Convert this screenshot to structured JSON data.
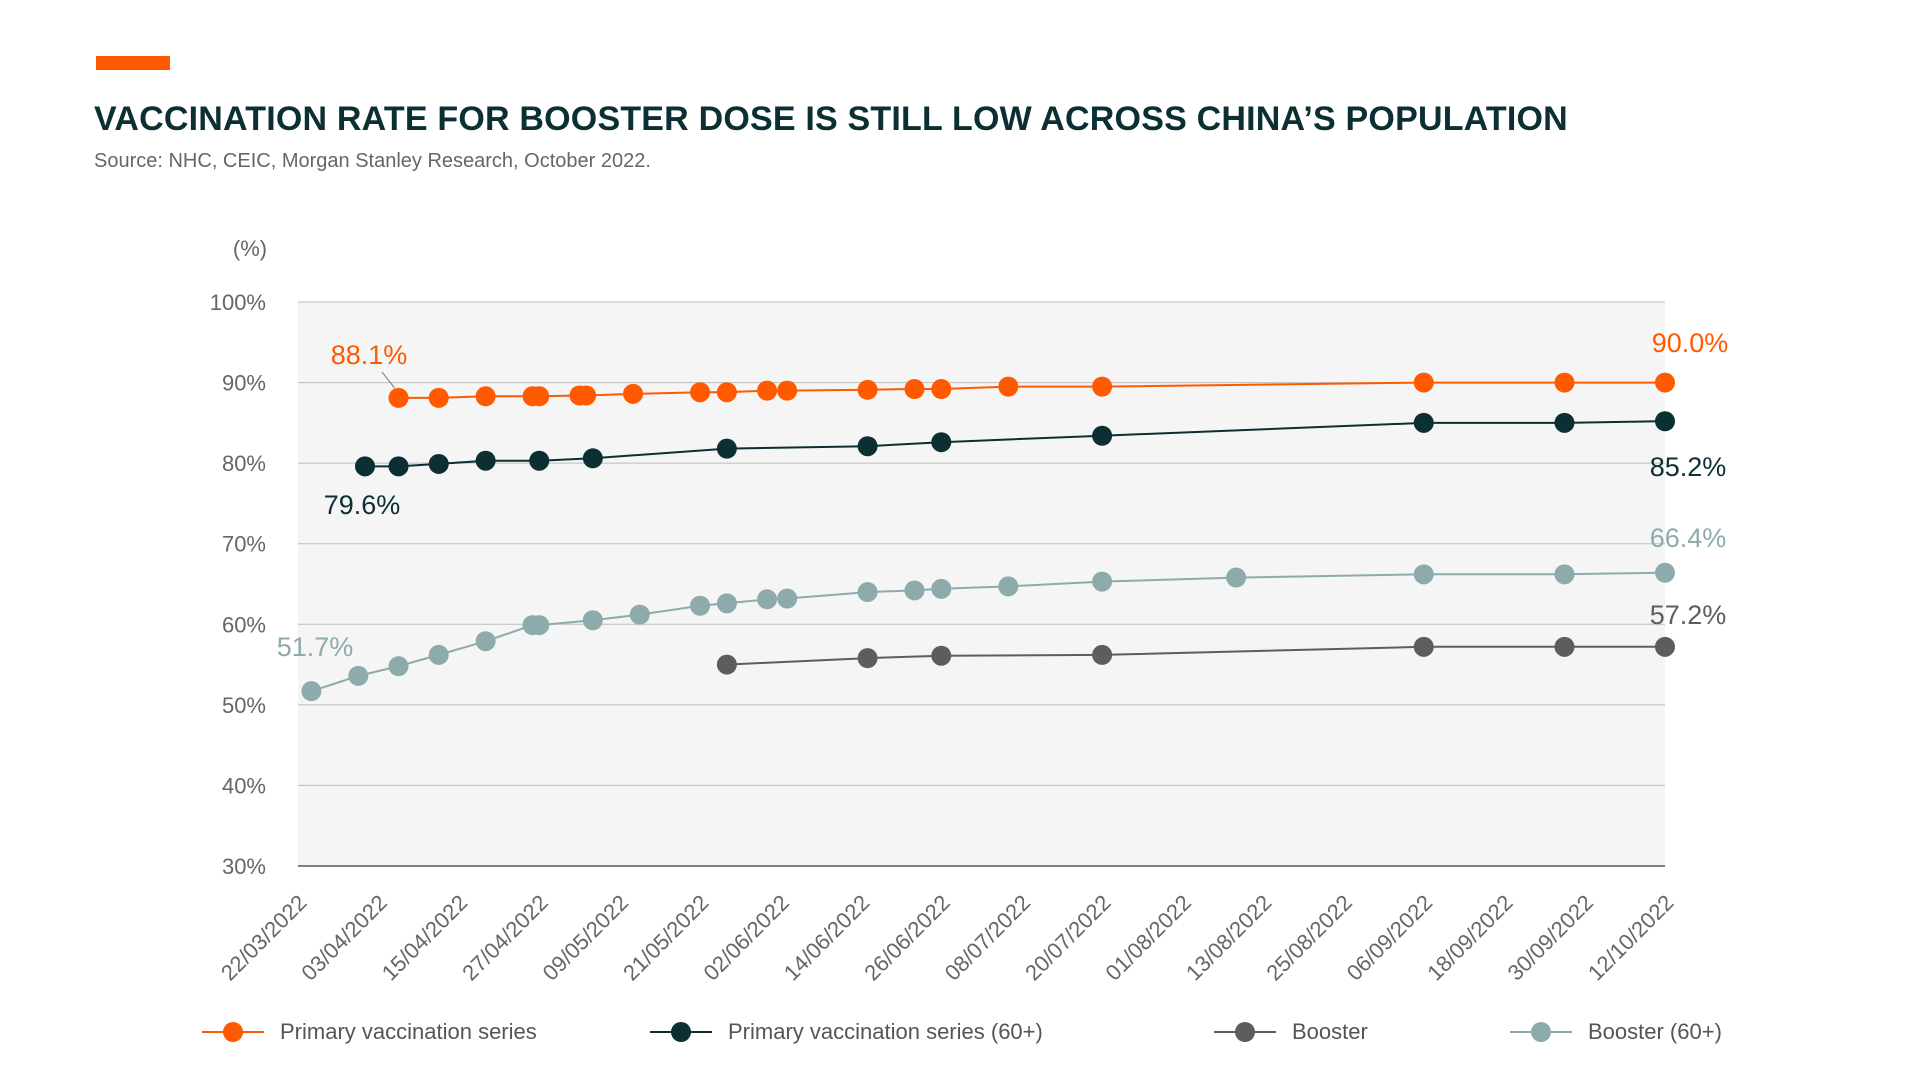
{
  "header": {
    "title": "VACCINATION RATE FOR BOOSTER DOSE IS STILL LOW ACROSS CHINA’S POPULATION",
    "source": "Source: NHC, CEIC, Morgan Stanley Research, October 2022.",
    "accent_color": "#ff5a00"
  },
  "chart_data": {
    "type": "line",
    "ylabel": "(%)",
    "ylim": [
      30,
      100
    ],
    "y_ticks": [
      30,
      40,
      50,
      60,
      70,
      80,
      90,
      100
    ],
    "y_tick_labels": [
      "30%",
      "40%",
      "50%",
      "60%",
      "70%",
      "80%",
      "90%",
      "100%"
    ],
    "x_start": "2022-03-22",
    "x_ticks": [
      "2022-03-22",
      "2022-04-03",
      "2022-04-15",
      "2022-04-27",
      "2022-05-09",
      "2022-05-21",
      "2022-06-02",
      "2022-06-14",
      "2022-06-26",
      "2022-07-08",
      "2022-07-20",
      "2022-08-01",
      "2022-08-13",
      "2022-08-25",
      "2022-09-06",
      "2022-09-18",
      "2022-09-30",
      "2022-10-12"
    ],
    "x_tick_labels": [
      "22/03/2022",
      "03/04/2022",
      "15/04/2022",
      "27/04/2022",
      "09/05/2022",
      "21/05/2022",
      "02/06/2022",
      "14/06/2022",
      "26/06/2022",
      "08/07/2022",
      "20/07/2022",
      "01/08/2022",
      "13/08/2022",
      "25/08/2022",
      "06/09/2022",
      "18/09/2022",
      "30/09/2022",
      "12/10/2022"
    ],
    "grid": true,
    "legend_position": "bottom",
    "series": [
      {
        "name": "Primary vaccination series",
        "color": "#ff5a00",
        "x": [
          "2022-04-06",
          "2022-04-12",
          "2022-04-19",
          "2022-04-26",
          "2022-04-27",
          "2022-05-03",
          "2022-05-04",
          "2022-05-11",
          "2022-05-21",
          "2022-05-25",
          "2022-05-31",
          "2022-06-03",
          "2022-06-15",
          "2022-06-22",
          "2022-06-26",
          "2022-07-06",
          "2022-07-20",
          "2022-09-06",
          "2022-09-27",
          "2022-10-12"
        ],
        "values": [
          88.1,
          88.1,
          88.3,
          88.3,
          88.3,
          88.4,
          88.4,
          88.6,
          88.8,
          88.8,
          89.0,
          89.0,
          89.1,
          89.2,
          89.2,
          89.5,
          89.5,
          90.0,
          90.0,
          90.0
        ],
        "start_label": "88.1%",
        "end_label": "90.0%"
      },
      {
        "name": "Primary vaccination series (60+)",
        "color": "#0b2f33",
        "x": [
          "2022-04-01",
          "2022-04-06",
          "2022-04-12",
          "2022-04-19",
          "2022-04-27",
          "2022-05-05",
          "2022-05-25",
          "2022-06-15",
          "2022-06-26",
          "2022-07-20",
          "2022-09-06",
          "2022-09-27",
          "2022-10-12"
        ],
        "values": [
          79.6,
          79.6,
          79.9,
          80.3,
          80.3,
          80.6,
          81.8,
          82.1,
          82.6,
          83.4,
          85.0,
          85.0,
          85.2
        ],
        "start_label": "79.6%",
        "end_label": "85.2%"
      },
      {
        "name": "Booster",
        "color": "#5f5c5e",
        "x": [
          "2022-05-25",
          "2022-06-15",
          "2022-06-26",
          "2022-07-20",
          "2022-09-06",
          "2022-09-27",
          "2022-10-12"
        ],
        "values": [
          55.0,
          55.8,
          56.1,
          56.2,
          57.2,
          57.2,
          57.2
        ],
        "end_label": "57.2%"
      },
      {
        "name": "Booster (60+)",
        "color": "#8eabab",
        "x": [
          "2022-03-24",
          "2022-03-31",
          "2022-04-06",
          "2022-04-12",
          "2022-04-19",
          "2022-04-26",
          "2022-04-27",
          "2022-05-05",
          "2022-05-12",
          "2022-05-21",
          "2022-05-25",
          "2022-05-31",
          "2022-06-03",
          "2022-06-15",
          "2022-06-22",
          "2022-06-26",
          "2022-07-06",
          "2022-07-20",
          "2022-08-09",
          "2022-09-06",
          "2022-09-27",
          "2022-10-12"
        ],
        "values": [
          51.7,
          53.6,
          54.8,
          56.2,
          57.9,
          59.9,
          59.9,
          60.5,
          61.2,
          62.3,
          62.6,
          63.1,
          63.2,
          64.0,
          64.2,
          64.4,
          64.7,
          65.3,
          65.8,
          66.2,
          66.2,
          66.4
        ],
        "start_label": "51.7%",
        "end_label": "66.4%"
      }
    ]
  }
}
